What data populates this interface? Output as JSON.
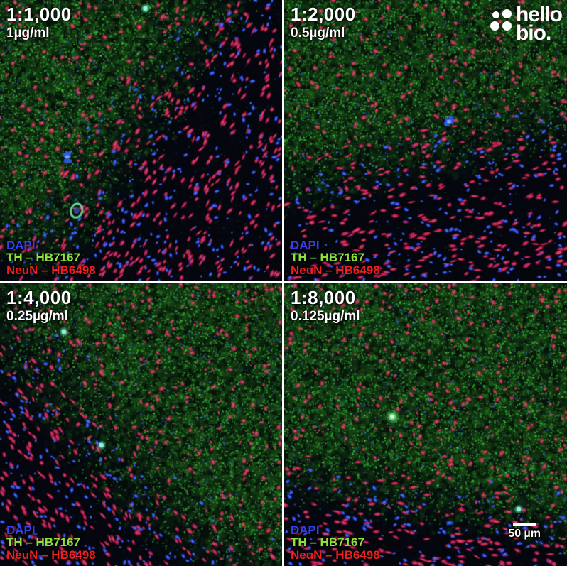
{
  "logo": {
    "line1": "hello",
    "line2": "bio."
  },
  "scale_bar": {
    "label": "50 µm"
  },
  "panels": [
    {
      "dilution": "1:1,000",
      "concentration": "1µg/ml",
      "legend": [
        {
          "label": "DAPI",
          "color": "#3340ee"
        },
        {
          "label": "TH – HB7167",
          "color": "#8ee03a"
        },
        {
          "label": "NeuN – HB6498",
          "color": "#ee1f1f"
        }
      ]
    },
    {
      "dilution": "1:2,000",
      "concentration": "0.5µg/ml",
      "legend": [
        {
          "label": "DAPI",
          "color": "#3340ee"
        },
        {
          "label": "TH – HB7167",
          "color": "#8ee03a"
        },
        {
          "label": "NeuN – HB6498",
          "color": "#ee1f1f"
        }
      ]
    },
    {
      "dilution": "1:4,000",
      "concentration": "0.25µg/ml",
      "legend": [
        {
          "label": "DAPI",
          "color": "#3340ee"
        },
        {
          "label": "TH – HB7167",
          "color": "#8ee03a"
        },
        {
          "label": "NeuN – HB6498",
          "color": "#ee1f1f"
        }
      ]
    },
    {
      "dilution": "1:8,000",
      "concentration": "0.125µg/ml",
      "legend": [
        {
          "label": "DAPI",
          "color": "#3340ee"
        },
        {
          "label": "TH – HB7167",
          "color": "#8ee03a"
        },
        {
          "label": "NeuN – HB6498",
          "color": "#ee1f1f"
        }
      ]
    }
  ]
}
